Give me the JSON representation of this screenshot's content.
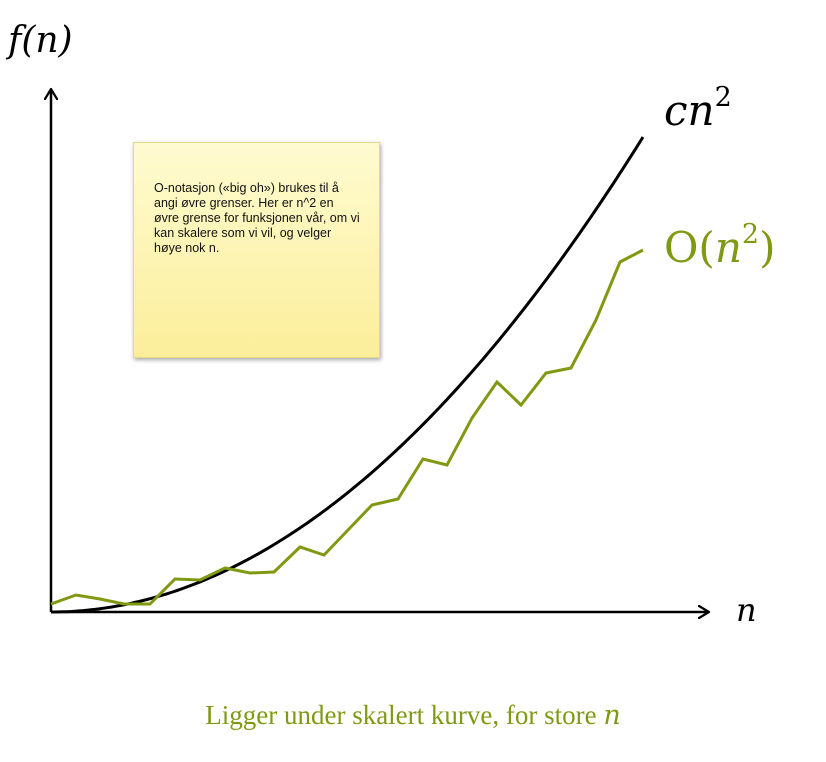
{
  "axes": {
    "y_label": "f(n)",
    "x_label": "n"
  },
  "curves": {
    "upper_label_base": "cn",
    "upper_label_exp": "2",
    "upper_color": "#000000",
    "lower_label_prefix": "O(",
    "lower_label_var": "n",
    "lower_label_exp": "2",
    "lower_label_suffix": ")",
    "lower_color": "#7f9a12"
  },
  "note": {
    "text": "O-notasjon («big oh») brukes til å angi øvre grenser. Her er n^2 en øvre grense for funksjonen vår, om vi kan skalere som vi vil, og velger høye nok n."
  },
  "caption": {
    "text": "Ligger under skalert kurve, for store ",
    "var": "n"
  }
}
